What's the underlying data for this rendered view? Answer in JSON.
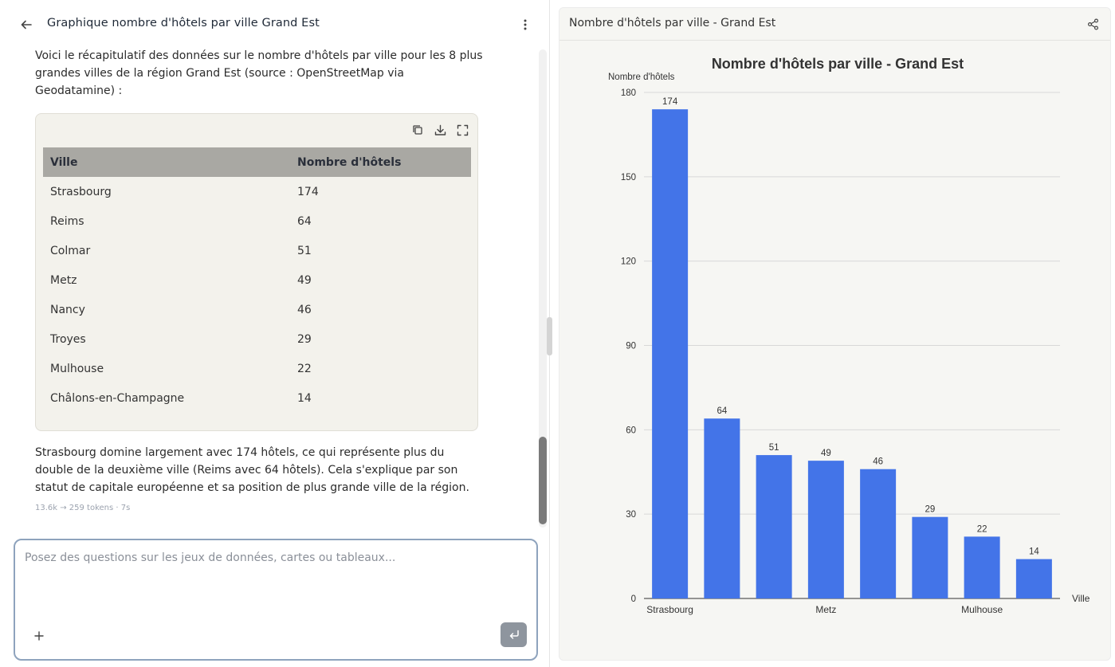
{
  "conversation": {
    "title": "Graphique nombre d'hôtels par ville Grand Est",
    "intro": "Voici le récapitulatif des données sur le nombre d'hôtels par ville pour les 8 plus grandes villes de la région Grand Est (source : OpenStreetMap via Geodatamine) :",
    "conclusion": "Strasbourg domine largement avec 174 hôtels, ce qui représente plus du double de la deuxième ville (Reims avec 64 hôtels). Cela s'explique par son statut de capitale européenne et sa position de plus grande ville de la région.",
    "token_info": "13.6k → 259 tokens · 7s"
  },
  "table": {
    "columns": [
      "Ville",
      "Nombre d'hôtels"
    ],
    "rows": [
      [
        "Strasbourg",
        "174"
      ],
      [
        "Reims",
        "64"
      ],
      [
        "Colmar",
        "51"
      ],
      [
        "Metz",
        "49"
      ],
      [
        "Nancy",
        "46"
      ],
      [
        "Troyes",
        "29"
      ],
      [
        "Mulhouse",
        "22"
      ],
      [
        "Châlons-en-Champagne",
        "14"
      ]
    ],
    "tools": [
      "copy-icon",
      "download-icon",
      "fullscreen-icon"
    ]
  },
  "composer": {
    "placeholder": "Posez des questions sur les jeux de données, cartes ou tableaux..."
  },
  "panel": {
    "title": "Nombre d'hôtels par ville - Grand Est"
  },
  "colors": {
    "bar": "#4374e8",
    "accent_border": "#8ea3bd",
    "send_button": "#8e959e"
  },
  "chart_data": {
    "type": "bar",
    "title": "Nombre d'hôtels par ville - Grand Est",
    "ylabel": "Nombre d'hôtels",
    "xlabel": "Ville",
    "categories": [
      "Strasbourg",
      "Reims",
      "Colmar",
      "Metz",
      "Nancy",
      "Troyes",
      "Mulhouse",
      "Châlons-en-Champagne"
    ],
    "values": [
      174,
      64,
      51,
      49,
      46,
      29,
      22,
      14
    ],
    "visible_x_tick_labels": [
      "Strasbourg",
      "Metz",
      "Mulhouse"
    ],
    "y_ticks": [
      0,
      30,
      60,
      90,
      120,
      150,
      180
    ],
    "ylim": [
      0,
      180
    ],
    "grid": true,
    "data_labels": true
  }
}
